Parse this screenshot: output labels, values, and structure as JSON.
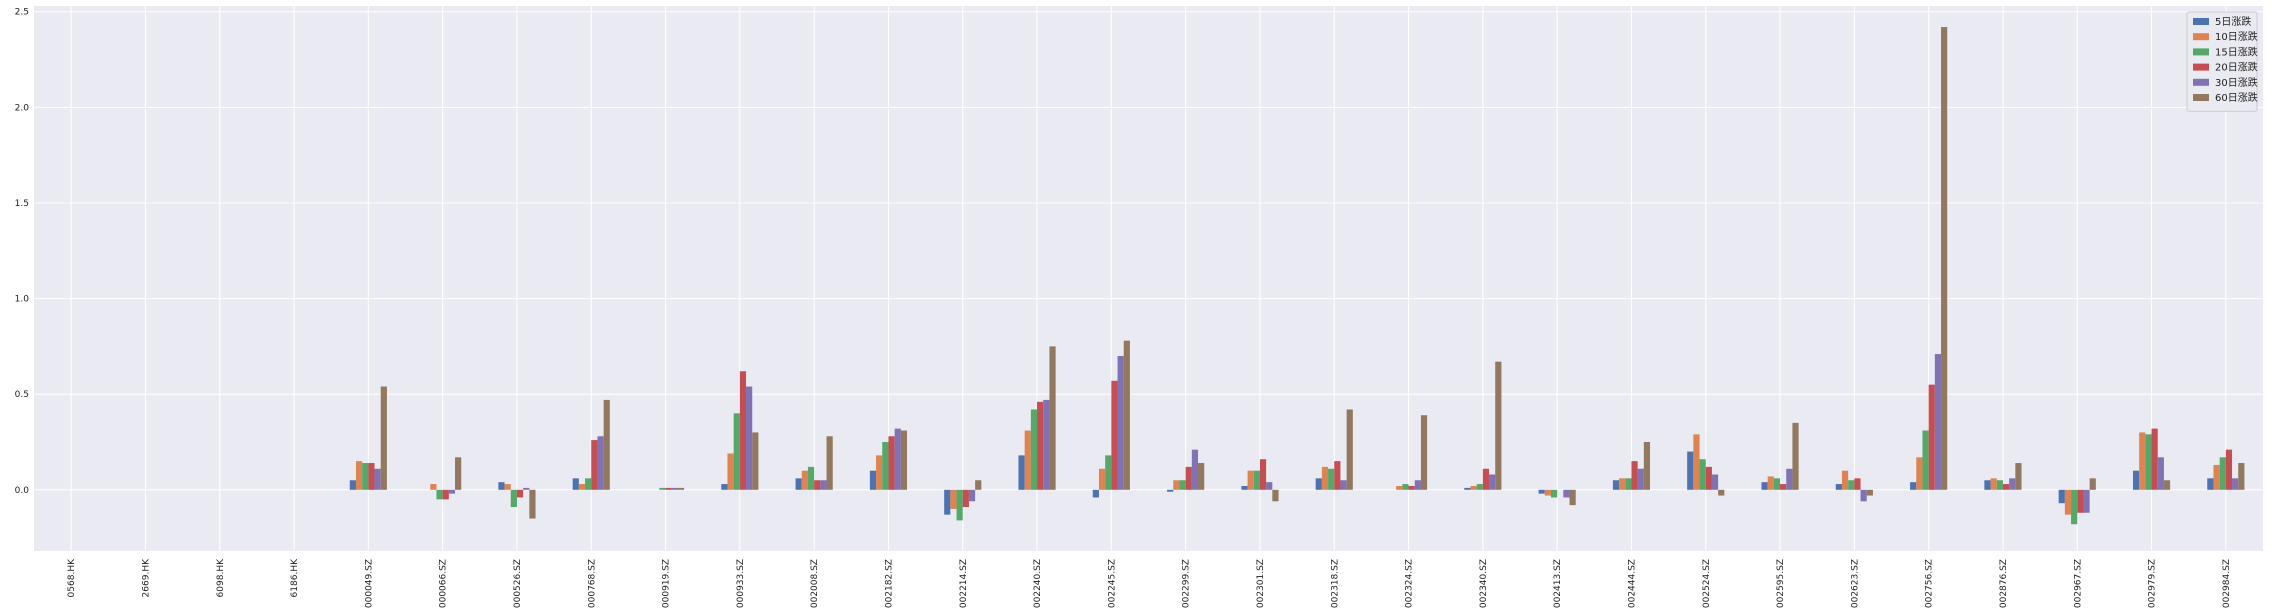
{
  "chart_data": {
    "type": "bar",
    "title": "",
    "xlabel": "",
    "ylabel": "",
    "ylim": [
      -0.32,
      2.53
    ],
    "yticks": [
      "0.0",
      "0.5",
      "1.0",
      "1.5",
      "2.0",
      "2.5"
    ],
    "ytick_values": [
      0.0,
      0.5,
      1.0,
      1.5,
      2.0,
      2.5
    ],
    "grid": true,
    "legend_position": "top-right",
    "categories": [
      "0568.HK",
      "2669.HK",
      "6098.HK",
      "6186.HK",
      "000049.SZ",
      "000066.SZ",
      "000526.SZ",
      "000768.SZ",
      "000919.SZ",
      "000933.SZ",
      "002008.SZ",
      "002182.SZ",
      "002214.SZ",
      "002240.SZ",
      "002245.SZ",
      "002299.SZ",
      "002301.SZ",
      "002318.SZ",
      "002324.SZ",
      "002340.SZ",
      "002413.SZ",
      "002444.SZ",
      "002524.SZ",
      "002595.SZ",
      "002623.SZ",
      "002756.SZ",
      "002876.SZ",
      "002967.SZ",
      "002979.SZ",
      "002984.SZ"
    ],
    "series": [
      {
        "name": "5日涨跌",
        "color": "#4c72b0",
        "values": [
          0,
          0,
          0,
          0,
          0.05,
          0,
          0.04,
          0.06,
          0,
          0.03,
          0.06,
          0.1,
          -0.13,
          0.18,
          -0.04,
          -0.01,
          0.02,
          0.06,
          0,
          0.01,
          -0.02,
          0.05,
          0.2,
          0.04,
          0.03,
          0.04,
          0.05,
          -0.07,
          0.1,
          0.06
        ]
      },
      {
        "name": "10日涨跌",
        "color": "#dd8452",
        "values": [
          0,
          0,
          0,
          0,
          0.15,
          0.03,
          0.03,
          0.03,
          0,
          0.19,
          0.1,
          0.18,
          -0.1,
          0.31,
          0.11,
          0.05,
          0.1,
          0.12,
          0.02,
          0.02,
          -0.03,
          0.06,
          0.29,
          0.07,
          0.1,
          0.17,
          0.06,
          -0.13,
          0.3,
          0.13
        ]
      },
      {
        "name": "15日涨跌",
        "color": "#55a868",
        "values": [
          0,
          0,
          0,
          0,
          0.14,
          -0.05,
          -0.09,
          0.06,
          0.01,
          0.4,
          0.12,
          0.25,
          -0.16,
          0.42,
          0.18,
          0.05,
          0.1,
          0.11,
          0.03,
          0.03,
          -0.04,
          0.06,
          0.16,
          0.06,
          0.05,
          0.31,
          0.05,
          -0.18,
          0.29,
          0.17
        ]
      },
      {
        "name": "20日涨跌",
        "color": "#c44e52",
        "values": [
          0,
          0,
          0,
          0,
          0.14,
          -0.05,
          -0.04,
          0.26,
          0.01,
          0.62,
          0.05,
          0.28,
          -0.09,
          0.46,
          0.57,
          0.12,
          0.16,
          0.15,
          0.02,
          0.11,
          0,
          0.15,
          0.12,
          0.03,
          0.06,
          0.55,
          0.03,
          -0.12,
          0.32,
          0.21
        ]
      },
      {
        "name": "30日涨跌",
        "color": "#8172b3",
        "values": [
          0,
          0,
          0,
          0,
          0.11,
          -0.02,
          0.01,
          0.28,
          0.01,
          0.54,
          0.05,
          0.32,
          -0.06,
          0.47,
          0.7,
          0.21,
          0.04,
          0.05,
          0.05,
          0.08,
          -0.04,
          0.11,
          0.08,
          0.11,
          -0.06,
          0.71,
          0.06,
          -0.12,
          0.17,
          0.06
        ]
      },
      {
        "name": "60日涨跌",
        "color": "#937860",
        "values": [
          0,
          0,
          0,
          0,
          0.54,
          0.17,
          -0.15,
          0.47,
          0.01,
          0.3,
          0.28,
          0.31,
          0.05,
          0.75,
          0.78,
          0.14,
          -0.06,
          0.42,
          0.39,
          0.67,
          -0.08,
          0.25,
          -0.03,
          0.35,
          -0.03,
          2.42,
          0.14,
          0.06,
          0.05,
          0.14
        ]
      }
    ]
  }
}
